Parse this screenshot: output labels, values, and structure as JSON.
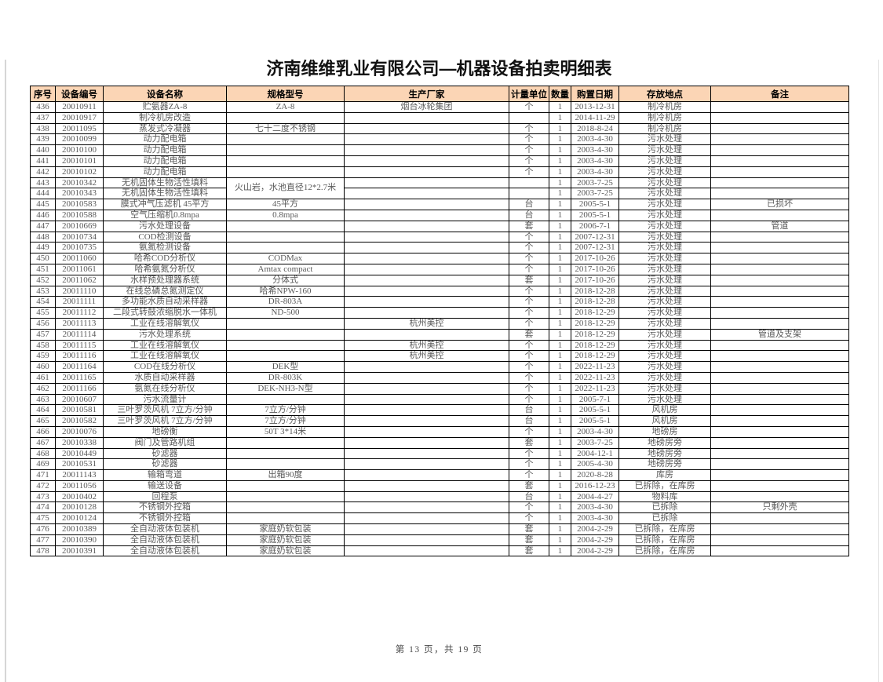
{
  "page": {
    "title": "济南维维乳业有限公司—机器设备拍卖明细表",
    "footer": "第 13 页，共 19 页",
    "header_bg": "#fbd5b5"
  },
  "table": {
    "columns": [
      "序号",
      "设备编号",
      "设备名称",
      "规格型号",
      "生产厂家",
      "计量单位",
      "数量",
      "购置日期",
      "存放地点",
      "备注"
    ],
    "col_keys": [
      "index",
      "equip-no",
      "name",
      "spec",
      "manufacturer",
      "unit",
      "qty",
      "purchase-date",
      "location",
      "remark"
    ],
    "rows": [
      {
        "c": [
          "436",
          "20010911",
          "贮氨器ZA-8",
          "ZA-8",
          "烟台冰轮集团",
          "个",
          "1",
          "2013-12-31",
          "制冷机房",
          ""
        ]
      },
      {
        "c": [
          "437",
          "20010917",
          "制冷机房改造",
          "",
          "",
          "",
          "1",
          "2014-11-29",
          "制冷机房",
          ""
        ]
      },
      {
        "c": [
          "438",
          "20011095",
          "蒸发式冷凝器",
          "七十二度不锈钢",
          "",
          "个",
          "1",
          "2018-8-24",
          "制冷机房",
          ""
        ]
      },
      {
        "c": [
          "439",
          "20010099",
          "动力配电箱",
          "",
          "",
          "个",
          "1",
          "2003-4-30",
          "污水处理",
          ""
        ]
      },
      {
        "c": [
          "440",
          "20010100",
          "动力配电箱",
          "",
          "",
          "个",
          "1",
          "2003-4-30",
          "污水处理",
          ""
        ]
      },
      {
        "c": [
          "441",
          "20010101",
          "动力配电箱",
          "",
          "",
          "个",
          "1",
          "2003-4-30",
          "污水处理",
          ""
        ]
      },
      {
        "c": [
          "442",
          "20010102",
          "动力配电箱",
          "",
          "",
          "个",
          "1",
          "2003-4-30",
          "污水处理",
          ""
        ]
      },
      {
        "c": [
          "443",
          "20010342",
          "无机固体生物活性填料",
          "火山岩，水池直径12*2.7米",
          "",
          "",
          "1",
          "2003-7-25",
          "污水处理",
          ""
        ],
        "rs": {
          "3": 2
        }
      },
      {
        "c": [
          "444",
          "20010343",
          "无机固体生物活性填料",
          null,
          "",
          "",
          "1",
          "2003-7-25",
          "污水处理",
          ""
        ]
      },
      {
        "c": [
          "445",
          "20010583",
          "膜式冲气压滤机 45平方",
          "45平方",
          "",
          "台",
          "1",
          "2005-5-1",
          "污水处理",
          "已损坏"
        ]
      },
      {
        "c": [
          "446",
          "20010588",
          "空气压缩机0.8mpa",
          "0.8mpa",
          "",
          "台",
          "1",
          "2005-5-1",
          "污水处理",
          ""
        ]
      },
      {
        "c": [
          "447",
          "20010669",
          "污水处理设备",
          "",
          "",
          "套",
          "1",
          "2006-7-1",
          "污水处理",
          "管道"
        ]
      },
      {
        "c": [
          "448",
          "20010734",
          "COD检测设备",
          "",
          "",
          "个",
          "1",
          "2007-12-31",
          "污水处理",
          ""
        ]
      },
      {
        "c": [
          "449",
          "20010735",
          "氨氮检测设备",
          "",
          "",
          "个",
          "1",
          "2007-12-31",
          "污水处理",
          ""
        ]
      },
      {
        "c": [
          "450",
          "20011060",
          "哈希COD分析仪",
          "CODMax",
          "",
          "个",
          "1",
          "2017-10-26",
          "污水处理",
          ""
        ]
      },
      {
        "c": [
          "451",
          "20011061",
          "哈希氨氮分析仪",
          "Amtax compact",
          "",
          "个",
          "1",
          "2017-10-26",
          "污水处理",
          ""
        ]
      },
      {
        "c": [
          "452",
          "20011062",
          "水样预处理器系统",
          "分体式",
          "",
          "套",
          "1",
          "2017-10-26",
          "污水处理",
          ""
        ]
      },
      {
        "c": [
          "453",
          "20011110",
          "在线总磷总氮测定仪",
          "哈希NPW-160",
          "",
          "个",
          "1",
          "2018-12-28",
          "污水处理",
          ""
        ]
      },
      {
        "c": [
          "454",
          "20011111",
          "多功能水质自动采样器",
          "DR-803A",
          "",
          "个",
          "1",
          "2018-12-28",
          "污水处理",
          ""
        ]
      },
      {
        "c": [
          "455",
          "20011112",
          "二段式转鼓浓缩脱水一体机",
          "ND-500",
          "",
          "个",
          "1",
          "2018-12-29",
          "污水处理",
          ""
        ]
      },
      {
        "c": [
          "456",
          "20011113",
          "工业在线溶解氧仪",
          "",
          "杭州美控",
          "个",
          "1",
          "2018-12-29",
          "污水处理",
          ""
        ]
      },
      {
        "c": [
          "457",
          "20011114",
          "污水处理系统",
          "",
          "",
          "套",
          "1",
          "2018-12-29",
          "污水处理",
          "管道及支架"
        ]
      },
      {
        "c": [
          "458",
          "20011115",
          "工业在线溶解氧仪",
          "",
          "杭州美控",
          "个",
          "1",
          "2018-12-29",
          "污水处理",
          ""
        ]
      },
      {
        "c": [
          "459",
          "20011116",
          "工业在线溶解氧仪",
          "",
          "杭州美控",
          "个",
          "1",
          "2018-12-29",
          "污水处理",
          ""
        ]
      },
      {
        "c": [
          "460",
          "20011164",
          "COD在线分析仪",
          "DEK型",
          "",
          "个",
          "1",
          "2022-11-23",
          "污水处理",
          ""
        ]
      },
      {
        "c": [
          "461",
          "20011165",
          "水质自动采样器",
          "DR-803K",
          "",
          "个",
          "1",
          "2022-11-23",
          "污水处理",
          ""
        ]
      },
      {
        "c": [
          "462",
          "20011166",
          "氨氮在线分析仪",
          "DEK-NH3-N型",
          "",
          "个",
          "1",
          "2022-11-23",
          "污水处理",
          ""
        ]
      },
      {
        "c": [
          "463",
          "20010607",
          "污水流量计",
          "",
          "",
          "个",
          "1",
          "2005-7-1",
          "污水处理",
          ""
        ]
      },
      {
        "c": [
          "464",
          "20010581",
          "三叶罗茨风机 7立方/分钟",
          "7立方/分钟",
          "",
          "台",
          "1",
          "2005-5-1",
          "风机房",
          ""
        ]
      },
      {
        "c": [
          "465",
          "20010582",
          "三叶罗茨风机 7立方/分钟",
          "7立方/分钟",
          "",
          "台",
          "1",
          "2005-5-1",
          "风机房",
          ""
        ]
      },
      {
        "c": [
          "466",
          "20010076",
          "地磅衡",
          "50T 3*14米",
          "",
          "个",
          "1",
          "2003-4-30",
          "地磅房",
          ""
        ]
      },
      {
        "c": [
          "467",
          "20010338",
          "阀门及管路机组",
          "",
          "",
          "套",
          "1",
          "2003-7-25",
          "地磅房旁",
          ""
        ]
      },
      {
        "c": [
          "468",
          "20010449",
          "砂滤器",
          "",
          "",
          "个",
          "1",
          "2004-12-1",
          "地磅房旁",
          ""
        ]
      },
      {
        "c": [
          "469",
          "20010531",
          "砂滤器",
          "",
          "",
          "个",
          "1",
          "2005-4-30",
          "地磅房旁",
          ""
        ]
      },
      {
        "c": [
          "471",
          "20011143",
          "输箱弯道",
          "出箱90度",
          "",
          "个",
          "1",
          "2020-8-28",
          "库房",
          ""
        ]
      },
      {
        "c": [
          "472",
          "20011056",
          "输送设备",
          "",
          "",
          "套",
          "1",
          "2016-12-23",
          "已拆除，在库房",
          ""
        ]
      },
      {
        "c": [
          "473",
          "20010402",
          "回程泵",
          "",
          "",
          "台",
          "1",
          "2004-4-27",
          "物料库",
          ""
        ]
      },
      {
        "c": [
          "474",
          "20010128",
          "不锈钢外控箱",
          "",
          "",
          "个",
          "1",
          "2003-4-30",
          "已拆除",
          "只剩外壳"
        ]
      },
      {
        "c": [
          "475",
          "20010124",
          "不锈钢外控箱",
          "",
          "",
          "个",
          "1",
          "2003-4-30",
          "已拆除",
          ""
        ]
      },
      {
        "c": [
          "476",
          "20010389",
          "全自动液体包装机",
          "家庭奶软包装",
          "",
          "套",
          "1",
          "2004-2-29",
          "已拆除，在库房",
          ""
        ]
      },
      {
        "c": [
          "477",
          "20010390",
          "全自动液体包装机",
          "家庭奶软包装",
          "",
          "套",
          "1",
          "2004-2-29",
          "已拆除，在库房",
          ""
        ]
      },
      {
        "c": [
          "478",
          "20010391",
          "全自动液体包装机",
          "家庭奶软包装",
          "",
          "套",
          "1",
          "2004-2-29",
          "已拆除，在库房",
          ""
        ]
      }
    ]
  }
}
